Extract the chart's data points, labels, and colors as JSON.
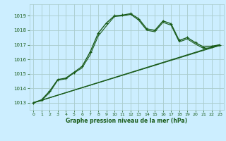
{
  "title": "Graphe pression niveau de la mer (hPa)",
  "bg_color": "#cceeff",
  "grid_color": "#aacccc",
  "line_color": "#1a5c1a",
  "xlim": [
    -0.5,
    23.5
  ],
  "ylim": [
    1012.5,
    1019.8
  ],
  "yticks": [
    1013,
    1014,
    1015,
    1016,
    1017,
    1018,
    1019
  ],
  "xticks": [
    0,
    1,
    2,
    3,
    4,
    5,
    6,
    7,
    8,
    9,
    10,
    11,
    12,
    13,
    14,
    15,
    16,
    17,
    18,
    19,
    20,
    21,
    22,
    23
  ],
  "line1_x": [
    0,
    1,
    2,
    3,
    4,
    5,
    6,
    7,
    8,
    9,
    10,
    11,
    12,
    13,
    14,
    15,
    16,
    17,
    18,
    19,
    20,
    21,
    22,
    23
  ],
  "line1_y": [
    1013.0,
    1013.2,
    1013.8,
    1014.6,
    1014.7,
    1015.1,
    1015.5,
    1016.5,
    1017.8,
    1018.5,
    1019.0,
    1019.05,
    1019.15,
    1018.8,
    1018.1,
    1018.0,
    1018.65,
    1018.45,
    1017.3,
    1017.5,
    1017.15,
    1016.85,
    1016.9,
    1017.0
  ],
  "line2_y": [
    1013.0,
    1013.15,
    1013.7,
    1014.55,
    1014.65,
    1015.05,
    1015.4,
    1016.3,
    1017.6,
    1018.3,
    1018.95,
    1019.0,
    1019.1,
    1018.7,
    1018.0,
    1017.9,
    1018.55,
    1018.35,
    1017.2,
    1017.4,
    1017.05,
    1016.75,
    1016.8,
    1016.95
  ],
  "trend1_x": [
    0,
    23
  ],
  "trend1_y": [
    1013.0,
    1017.0
  ],
  "trend2_x": [
    0,
    23
  ],
  "trend2_y": [
    1013.0,
    1016.95
  ]
}
